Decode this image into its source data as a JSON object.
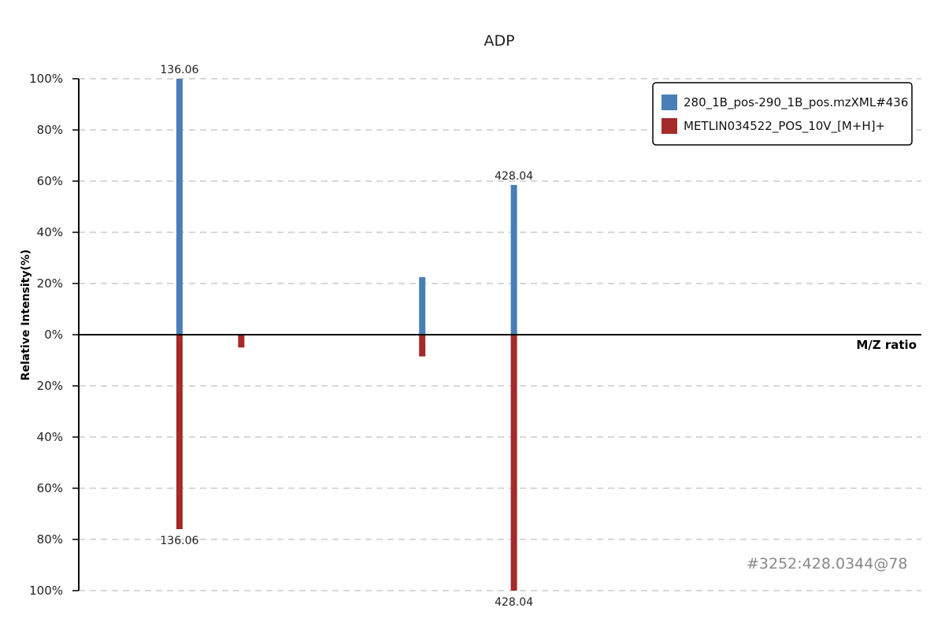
{
  "chart_data": {
    "type": "bar",
    "title": "ADP",
    "xlabel": "M/Z ratio",
    "ylabel": "Relative Intensity(%)",
    "y_ticks_top": [
      "100%",
      "80%",
      "60%",
      "40%",
      "20%",
      "0%"
    ],
    "y_ticks_bottom": [
      "20%",
      "40%",
      "60%",
      "80%",
      "100%"
    ],
    "ylim": [
      -100,
      100
    ],
    "grid": true,
    "legend_position": "top-right",
    "annotation": "#3252:428.0344@78",
    "colors": {
      "experimental": "#4a7fb5",
      "reference": "#a52a2a"
    },
    "series": [
      {
        "name": "280_1B_pos-290_1B_pos.mzXML#436",
        "direction": "up",
        "peaks": [
          {
            "mz": 136.06,
            "intensity": 100,
            "label": "136.06"
          },
          {
            "mz": 348.0,
            "intensity": 22.5,
            "label": ""
          },
          {
            "mz": 428.04,
            "intensity": 58.5,
            "label": "428.04"
          }
        ]
      },
      {
        "name": "METLIN034522_POS_10V_[M+H]+",
        "direction": "down",
        "peaks": [
          {
            "mz": 136.06,
            "intensity": 76,
            "label": "136.06"
          },
          {
            "mz": 190.0,
            "intensity": 5,
            "label": ""
          },
          {
            "mz": 348.0,
            "intensity": 8.5,
            "label": ""
          },
          {
            "mz": 428.04,
            "intensity": 100,
            "label": "428.04"
          }
        ]
      }
    ],
    "xlim": [
      81,
      527
    ]
  }
}
